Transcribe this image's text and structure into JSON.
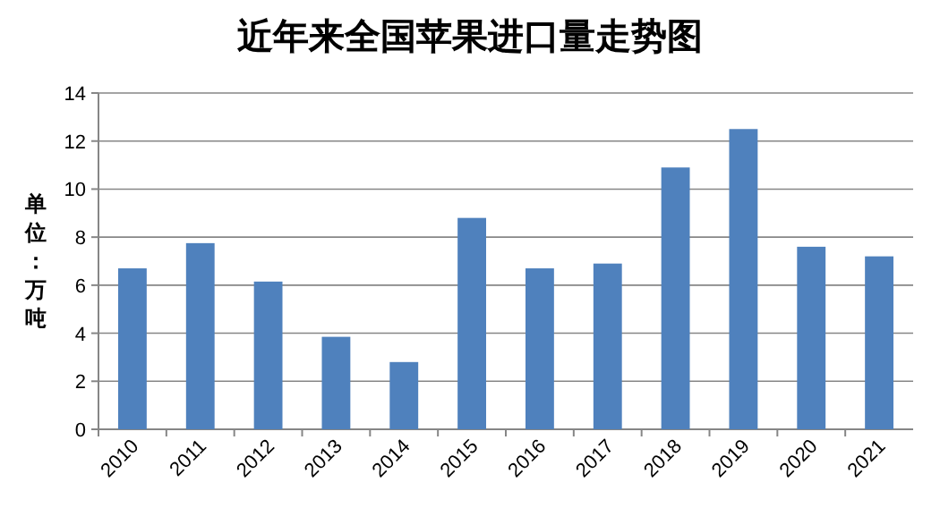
{
  "chart_data": {
    "type": "bar",
    "title": "近年来全国苹果进口量走势图",
    "ylabel": "单位：万吨",
    "categories": [
      "2010",
      "2011",
      "2012",
      "2013",
      "2014",
      "2015",
      "2016",
      "2017",
      "2018",
      "2019",
      "2020",
      "2021"
    ],
    "values": [
      6.7,
      7.75,
      6.15,
      3.85,
      2.8,
      8.8,
      6.7,
      6.9,
      10.9,
      12.5,
      7.6,
      7.2
    ],
    "color": "#4f81bd",
    "ylim": [
      0,
      14
    ],
    "yticks": [
      0,
      2,
      4,
      6,
      8,
      10,
      12,
      14
    ],
    "grid": "y"
  }
}
